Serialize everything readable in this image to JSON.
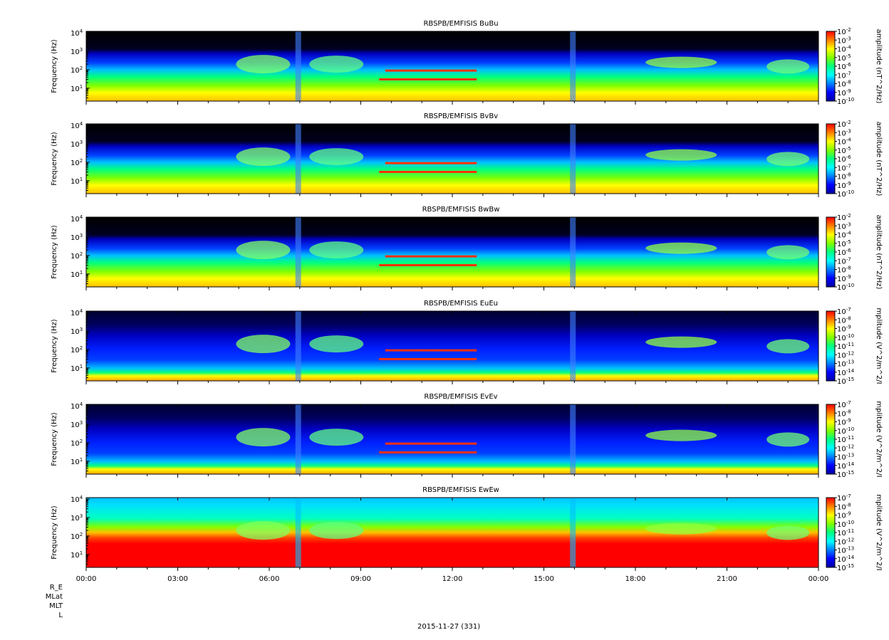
{
  "figure": {
    "date_label": "2015-11-27 (331)",
    "ephemeris_labels": [
      "R_E",
      "MLat",
      "MLT",
      "L"
    ],
    "colors": {
      "background": "#ffffff",
      "no_data": "#000000",
      "colormap": [
        "#0000a0",
        "#0000ff",
        "#0080ff",
        "#00ffff",
        "#00ff80",
        "#80ff00",
        "#ffff00",
        "#ff8000",
        "#ff0000"
      ]
    }
  },
  "chart_data": [
    {
      "type": "heatmap",
      "title": "RBSPB/EMFISIS  BuBu",
      "xlabel": "",
      "ylabel": "Frequency (Hz)",
      "x_ticks": [
        "00:00",
        "03:00",
        "06:00",
        "09:00",
        "12:00",
        "15:00",
        "18:00",
        "21:00",
        "00:00"
      ],
      "y_scale": "log",
      "y_ticks": [
        1,
        2,
        3,
        4
      ],
      "ylim": [
        2,
        12000
      ],
      "colorbar": {
        "label": "amplitude (nT^2/Hz)",
        "scale": "log",
        "range": [
          -10,
          -2
        ],
        "ticks": [
          -2,
          -3,
          -4,
          -5,
          -6,
          -7,
          -8,
          -9,
          -10
        ]
      }
    },
    {
      "type": "heatmap",
      "title": "RBSPB/EMFISIS  BvBv",
      "xlabel": "",
      "ylabel": "Frequency (Hz)",
      "x_ticks": [
        "00:00",
        "03:00",
        "06:00",
        "09:00",
        "12:00",
        "15:00",
        "18:00",
        "21:00",
        "00:00"
      ],
      "y_scale": "log",
      "y_ticks": [
        1,
        2,
        3,
        4
      ],
      "ylim": [
        2,
        12000
      ],
      "colorbar": {
        "label": "amplitude (nT^2/Hz)",
        "scale": "log",
        "range": [
          -10,
          -2
        ],
        "ticks": [
          -2,
          -3,
          -4,
          -5,
          -6,
          -7,
          -8,
          -9,
          -10
        ]
      }
    },
    {
      "type": "heatmap",
      "title": "RBSPB/EMFISIS  BwBw",
      "xlabel": "",
      "ylabel": "Frequency (Hz)",
      "x_ticks": [
        "00:00",
        "03:00",
        "06:00",
        "09:00",
        "12:00",
        "15:00",
        "18:00",
        "21:00",
        "00:00"
      ],
      "y_scale": "log",
      "y_ticks": [
        1,
        2,
        3,
        4
      ],
      "ylim": [
        2,
        12000
      ],
      "colorbar": {
        "label": "amplitude (nT^2/Hz)",
        "scale": "log",
        "range": [
          -10,
          -2
        ],
        "ticks": [
          -2,
          -3,
          -4,
          -5,
          -6,
          -7,
          -8,
          -9,
          -10
        ]
      }
    },
    {
      "type": "heatmap",
      "title": "RBSPB/EMFISIS  EuEu",
      "xlabel": "",
      "ylabel": "Frequency (Hz)",
      "x_ticks": [
        "00:00",
        "03:00",
        "06:00",
        "09:00",
        "12:00",
        "15:00",
        "18:00",
        "21:00",
        "00:00"
      ],
      "y_scale": "log",
      "y_ticks": [
        1,
        2,
        3,
        4
      ],
      "ylim": [
        2,
        12000
      ],
      "colorbar": {
        "label": "mplitude (V^2/m^2/I",
        "scale": "log",
        "range": [
          -15,
          -7
        ],
        "ticks": [
          -7,
          -8,
          -9,
          -10,
          -11,
          -12,
          -13,
          -14,
          -15
        ]
      }
    },
    {
      "type": "heatmap",
      "title": "RBSPB/EMFISIS  EvEv",
      "xlabel": "",
      "ylabel": "Frequency (Hz)",
      "x_ticks": [
        "00:00",
        "03:00",
        "06:00",
        "09:00",
        "12:00",
        "15:00",
        "18:00",
        "21:00",
        "00:00"
      ],
      "y_scale": "log",
      "y_ticks": [
        1,
        2,
        3,
        4
      ],
      "ylim": [
        2,
        12000
      ],
      "colorbar": {
        "label": "mplitude (V^2/m^2/I",
        "scale": "log",
        "range": [
          -15,
          -7
        ],
        "ticks": [
          -7,
          -8,
          -9,
          -10,
          -11,
          -12,
          -13,
          -14,
          -15
        ]
      }
    },
    {
      "type": "heatmap",
      "title": "RBSPB/EMFISIS  EwEw",
      "xlabel": "",
      "ylabel": "Frequency (Hz)",
      "x_ticks": [
        "00:00",
        "03:00",
        "06:00",
        "09:00",
        "12:00",
        "15:00",
        "18:00",
        "21:00",
        "00:00"
      ],
      "y_scale": "log",
      "y_ticks": [
        1,
        2,
        3,
        4
      ],
      "ylim": [
        2,
        12000
      ],
      "colorbar": {
        "label": "mplitude (V^2/m^2/I",
        "scale": "log",
        "range": [
          -15,
          -7
        ],
        "ticks": [
          -7,
          -8,
          -9,
          -10,
          -11,
          -12,
          -13,
          -14,
          -15
        ]
      }
    }
  ]
}
